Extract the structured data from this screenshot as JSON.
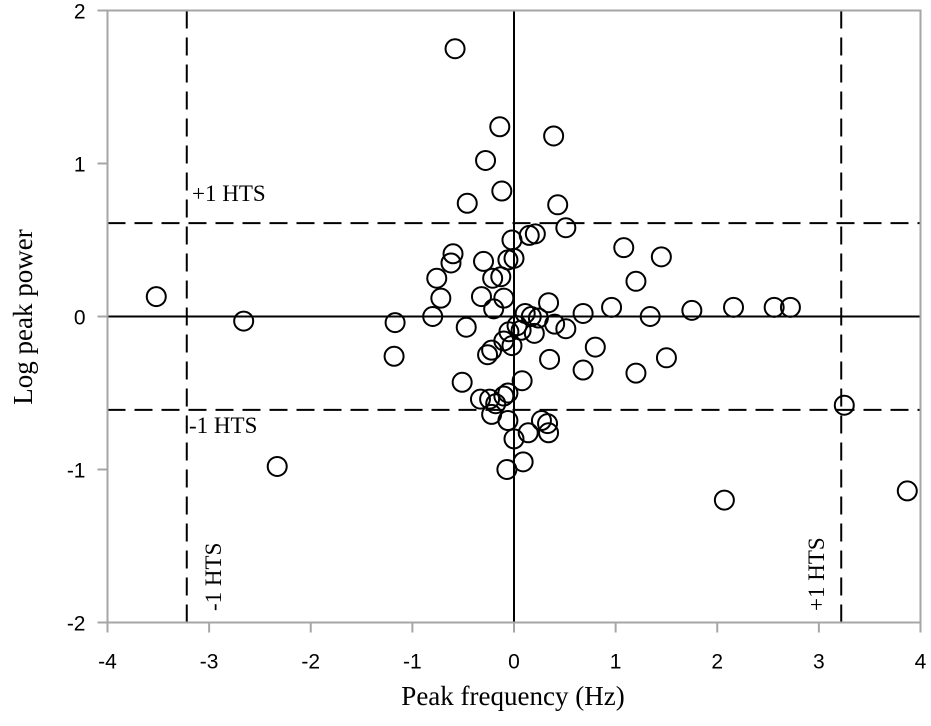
{
  "chart_data": {
    "type": "scatter",
    "title": "",
    "xlabel": "Peak frequency (Hz)",
    "ylabel": "Log peak power",
    "xlim": [
      -4,
      4
    ],
    "ylim": [
      -2,
      2
    ],
    "xticks": [
      -4,
      -3,
      -2,
      -1,
      0,
      1,
      2,
      3,
      4
    ],
    "yticks": [
      -2,
      -1,
      0,
      1,
      2
    ],
    "grid": false,
    "marker": "open-circle",
    "thresholds": {
      "x": [
        -3.22,
        3.22
      ],
      "y": [
        0.61,
        -0.61
      ]
    },
    "annotations": {
      "upper_power": "+1 HTS",
      "lower_power": "-1 HTS",
      "lower_freq": "-1 HTS",
      "upper_freq": "+1 HTS"
    },
    "points": [
      [
        -0.58,
        1.75
      ],
      [
        -0.14,
        1.24
      ],
      [
        0.39,
        1.18
      ],
      [
        -0.28,
        1.02
      ],
      [
        -0.12,
        0.82
      ],
      [
        0.43,
        0.73
      ],
      [
        -0.46,
        0.74
      ],
      [
        0.15,
        0.53
      ],
      [
        0.21,
        0.54
      ],
      [
        0.51,
        0.58
      ],
      [
        -0.02,
        0.5
      ],
      [
        -0.6,
        0.41
      ],
      [
        -0.62,
        0.35
      ],
      [
        -0.3,
        0.36
      ],
      [
        -0.06,
        0.37
      ],
      [
        0.0,
        0.38
      ],
      [
        1.08,
        0.45
      ],
      [
        1.45,
        0.39
      ],
      [
        -0.76,
        0.25
      ],
      [
        -0.21,
        0.25
      ],
      [
        -0.13,
        0.26
      ],
      [
        1.2,
        0.23
      ],
      [
        -0.72,
        0.12
      ],
      [
        -0.32,
        0.13
      ],
      [
        -0.1,
        0.12
      ],
      [
        -0.2,
        0.05
      ],
      [
        0.34,
        0.09
      ],
      [
        0.96,
        0.06
      ],
      [
        1.75,
        0.04
      ],
      [
        2.16,
        0.06
      ],
      [
        2.56,
        0.06
      ],
      [
        2.72,
        0.06
      ],
      [
        -3.52,
        0.13
      ],
      [
        -2.66,
        -0.03
      ],
      [
        -1.17,
        -0.04
      ],
      [
        -0.8,
        0.0
      ],
      [
        -0.47,
        -0.07
      ],
      [
        0.11,
        0.02
      ],
      [
        0.17,
        0.0
      ],
      [
        0.24,
        -0.01
      ],
      [
        0.4,
        -0.05
      ],
      [
        0.68,
        0.02
      ],
      [
        1.34,
        0.0
      ],
      [
        -0.05,
        -0.1
      ],
      [
        0.03,
        -0.06
      ],
      [
        0.07,
        -0.09
      ],
      [
        0.2,
        -0.11
      ],
      [
        0.51,
        -0.08
      ],
      [
        -0.1,
        -0.16
      ],
      [
        -0.02,
        -0.19
      ],
      [
        -1.18,
        -0.26
      ],
      [
        -0.22,
        -0.22
      ],
      [
        -0.26,
        -0.25
      ],
      [
        0.35,
        -0.28
      ],
      [
        0.8,
        -0.2
      ],
      [
        1.5,
        -0.27
      ],
      [
        0.68,
        -0.35
      ],
      [
        1.2,
        -0.37
      ],
      [
        -0.51,
        -0.43
      ],
      [
        0.08,
        -0.42
      ],
      [
        -0.33,
        -0.54
      ],
      [
        -0.24,
        -0.54
      ],
      [
        -0.18,
        -0.57
      ],
      [
        -0.1,
        -0.52
      ],
      [
        -0.06,
        -0.5
      ],
      [
        -0.22,
        -0.64
      ],
      [
        -0.06,
        -0.68
      ],
      [
        0.27,
        -0.68
      ],
      [
        0.33,
        -0.7
      ],
      [
        0.14,
        -0.76
      ],
      [
        0.34,
        -0.76
      ],
      [
        0.0,
        -0.8
      ],
      [
        -2.33,
        -0.98
      ],
      [
        -0.07,
        -1.0
      ],
      [
        0.09,
        -0.95
      ],
      [
        2.07,
        -1.2
      ],
      [
        3.25,
        -0.58
      ],
      [
        3.87,
        -1.14
      ]
    ]
  }
}
